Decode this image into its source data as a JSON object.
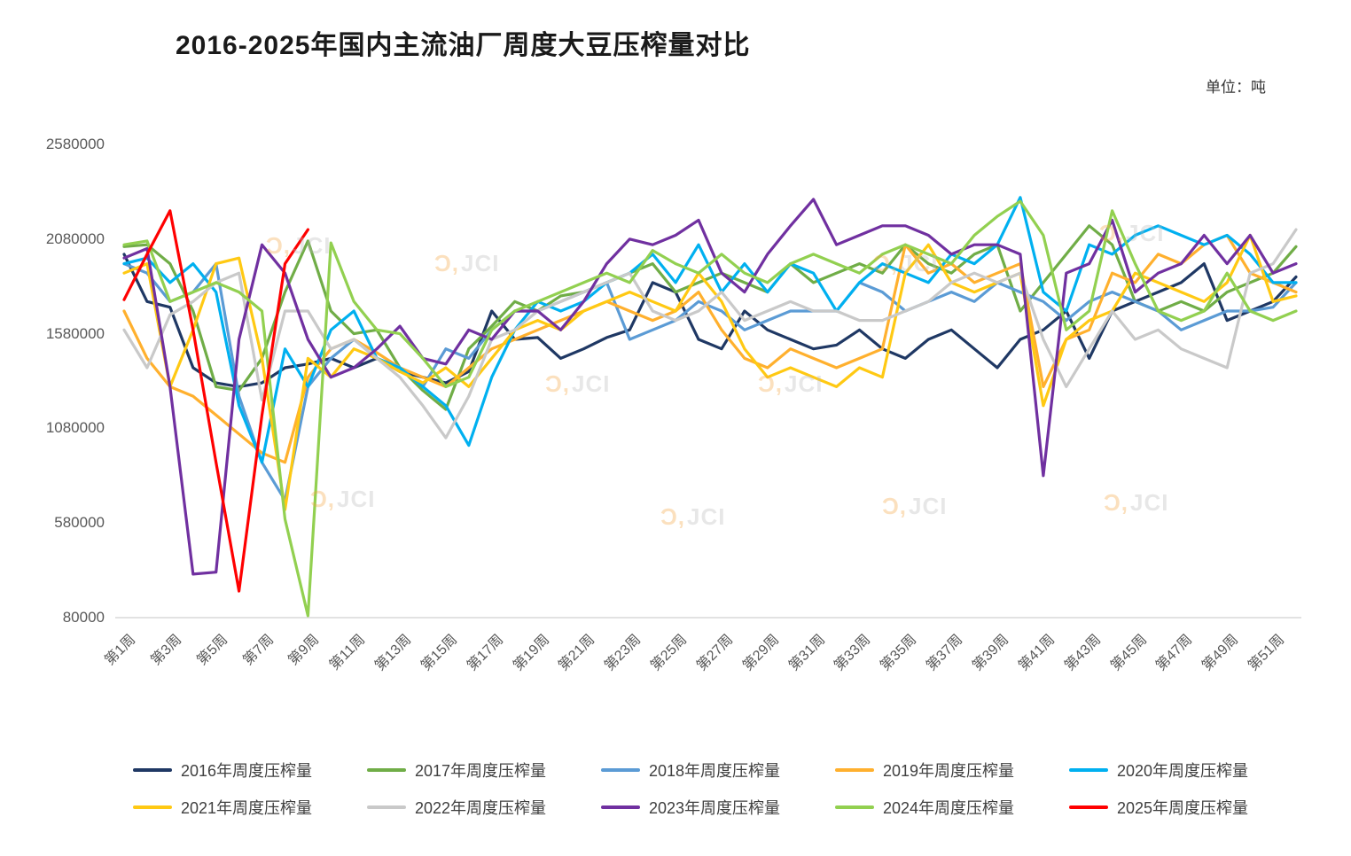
{
  "title": "2016-2025年国内主流油厂周度大豆压榨量对比",
  "unit_label": "单位：吨",
  "watermark": "JCI",
  "chart_data": {
    "type": "line",
    "title": "2016-2025年国内主流油厂周度大豆压榨量对比",
    "ylabel": "吨",
    "weeks": 52,
    "grid": false,
    "legend_position": "bottom",
    "ylim": [
      80000,
      2580000
    ],
    "y_ticks": [
      80000,
      580000,
      1080000,
      1580000,
      2080000,
      2580000
    ],
    "x_tick_labels": [
      "第1周",
      "第3周",
      "第5周",
      "第7周",
      "第9周",
      "第11周",
      "第13周",
      "第15周",
      "第17周",
      "第19周",
      "第21周",
      "第23周",
      "第25周",
      "第27周",
      "第29周",
      "第31周",
      "第33周",
      "第35周",
      "第37周",
      "第39周",
      "第41周",
      "第43周",
      "第45周",
      "第47周",
      "第49周",
      "第51周"
    ],
    "series": [
      {
        "name": "2016年周度压榨量",
        "color": "#1f3864",
        "values": [
          2000000,
          1750000,
          1720000,
          1400000,
          1320000,
          1300000,
          1320000,
          1400000,
          1420000,
          1450000,
          1400000,
          1450000,
          1380000,
          1350000,
          1320000,
          1380000,
          1700000,
          1550000,
          1560000,
          1450000,
          1500000,
          1560000,
          1600000,
          1850000,
          1800000,
          1550000,
          1500000,
          1700000,
          1600000,
          1550000,
          1500000,
          1520000,
          1600000,
          1500000,
          1450000,
          1550000,
          1600000,
          1500000,
          1400000,
          1550000,
          1600000,
          1700000,
          1450000,
          1700000,
          1750000,
          1800000,
          1850000,
          1950000,
          1650000,
          1700000,
          1750000,
          1880000
        ]
      },
      {
        "name": "2017年周度压榨量",
        "color": "#70ad47",
        "values": [
          2040000,
          2050000,
          1950000,
          1700000,
          1300000,
          1280000,
          1450000,
          1800000,
          2070000,
          1700000,
          1580000,
          1600000,
          1400000,
          1280000,
          1180000,
          1500000,
          1620000,
          1750000,
          1700000,
          1780000,
          1800000,
          1850000,
          1900000,
          1950000,
          1800000,
          1850000,
          1900000,
          1850000,
          1800000,
          1950000,
          1850000,
          1900000,
          1950000,
          1900000,
          2050000,
          1950000,
          1900000,
          2000000,
          2050000,
          1700000,
          1850000,
          2000000,
          2150000,
          2050000,
          1750000,
          1700000,
          1750000,
          1700000,
          1800000,
          1850000,
          1900000,
          2040000
        ]
      },
      {
        "name": "2018年周度压榨量",
        "color": "#5b9bd5",
        "values": [
          1950000,
          1900000,
          1750000,
          1800000,
          1950000,
          1250000,
          900000,
          700000,
          1300000,
          1450000,
          1550000,
          1450000,
          1400000,
          1300000,
          1500000,
          1450000,
          1600000,
          1700000,
          1700000,
          1750000,
          1800000,
          1850000,
          1550000,
          1600000,
          1650000,
          1750000,
          1700000,
          1600000,
          1650000,
          1700000,
          1700000,
          1700000,
          1850000,
          1800000,
          1700000,
          1750000,
          1800000,
          1750000,
          1850000,
          1800000,
          1750000,
          1650000,
          1750000,
          1800000,
          1750000,
          1700000,
          1600000,
          1650000,
          1700000,
          1700000,
          1720000,
          1850000
        ]
      },
      {
        "name": "2019年周度压榨量",
        "color": "#ffb02e",
        "values": [
          1700000,
          1450000,
          1300000,
          1250000,
          1150000,
          1050000,
          950000,
          900000,
          1350000,
          1500000,
          1550000,
          1480000,
          1400000,
          1350000,
          1300000,
          1400000,
          1500000,
          1550000,
          1600000,
          1650000,
          1700000,
          1750000,
          1700000,
          1650000,
          1700000,
          1800000,
          1600000,
          1450000,
          1400000,
          1500000,
          1450000,
          1400000,
          1450000,
          1500000,
          2050000,
          1900000,
          1950000,
          1850000,
          1900000,
          1950000,
          1300000,
          1550000,
          1600000,
          1900000,
          1850000,
          2000000,
          1950000,
          2050000,
          2100000,
          1900000,
          1850000,
          1800000
        ]
      },
      {
        "name": "2020年周度压榨量",
        "color": "#00b0f0",
        "values": [
          1950000,
          1980000,
          1850000,
          1950000,
          1800000,
          1200000,
          900000,
          1500000,
          1300000,
          1600000,
          1700000,
          1450000,
          1400000,
          1300000,
          1200000,
          990000,
          1350000,
          1600000,
          1750000,
          1700000,
          1750000,
          1850000,
          1900000,
          2000000,
          1850000,
          2050000,
          1800000,
          1950000,
          1800000,
          1950000,
          1900000,
          1700000,
          1850000,
          1950000,
          1900000,
          1850000,
          2000000,
          1950000,
          2050000,
          2300000,
          1800000,
          1700000,
          2050000,
          2000000,
          2100000,
          2150000,
          2100000,
          2050000,
          2100000,
          2000000,
          1850000,
          1850000
        ]
      },
      {
        "name": "2021年周度压榨量",
        "color": "#ffc913",
        "values": [
          1900000,
          1950000,
          1300000,
          1600000,
          1950000,
          1980000,
          1450000,
          650000,
          1450000,
          1350000,
          1500000,
          1450000,
          1380000,
          1320000,
          1400000,
          1300000,
          1450000,
          1600000,
          1650000,
          1600000,
          1700000,
          1750000,
          1800000,
          1750000,
          1700000,
          1900000,
          1750000,
          1500000,
          1350000,
          1400000,
          1350000,
          1300000,
          1400000,
          1350000,
          1900000,
          2050000,
          1850000,
          1800000,
          1850000,
          1900000,
          1200000,
          1550000,
          1650000,
          1700000,
          1900000,
          1850000,
          1800000,
          1750000,
          1850000,
          2100000,
          1750000,
          1780000
        ]
      },
      {
        "name": "2022年周度压榨量",
        "color": "#c9c9c9",
        "values": [
          1600000,
          1400000,
          1680000,
          1750000,
          1850000,
          1900000,
          1230000,
          1700000,
          1700000,
          1500000,
          1550000,
          1450000,
          1350000,
          1200000,
          1030000,
          1250000,
          1550000,
          1600000,
          1700000,
          1750000,
          1800000,
          1850000,
          1900000,
          1700000,
          1650000,
          1700000,
          1800000,
          1650000,
          1700000,
          1750000,
          1700000,
          1700000,
          1650000,
          1650000,
          1700000,
          1750000,
          1850000,
          1900000,
          1850000,
          1900000,
          1550000,
          1300000,
          1500000,
          1700000,
          1550000,
          1600000,
          1500000,
          1450000,
          1400000,
          1900000,
          1950000,
          2130000
        ]
      },
      {
        "name": "2023年周度压榨量",
        "color": "#7030a0",
        "values": [
          1980000,
          2030000,
          1300000,
          310000,
          320000,
          1550000,
          2050000,
          1900000,
          1550000,
          1350000,
          1400000,
          1500000,
          1620000,
          1450000,
          1420000,
          1600000,
          1550000,
          1700000,
          1700000,
          1600000,
          1750000,
          1950000,
          2080000,
          2050000,
          2100000,
          2180000,
          1900000,
          1800000,
          2000000,
          2150000,
          2290000,
          2050000,
          2100000,
          2150000,
          2150000,
          2100000,
          2000000,
          2050000,
          2050000,
          2000000,
          830000,
          1900000,
          1950000,
          2180000,
          1800000,
          1900000,
          1950000,
          2100000,
          1950000,
          2100000,
          1900000,
          1950000
        ]
      },
      {
        "name": "2024年周度压榨量",
        "color": "#92d050",
        "values": [
          2050000,
          2070000,
          1750000,
          1800000,
          1850000,
          1800000,
          1700000,
          600000,
          90000,
          2060000,
          1750000,
          1600000,
          1580000,
          1450000,
          1300000,
          1350000,
          1600000,
          1700000,
          1750000,
          1800000,
          1850000,
          1900000,
          1850000,
          2020000,
          1950000,
          1900000,
          2000000,
          1900000,
          1850000,
          1950000,
          2000000,
          1950000,
          1900000,
          2000000,
          2050000,
          2000000,
          1950000,
          2100000,
          2200000,
          2280000,
          2100000,
          1600000,
          1700000,
          2230000,
          1950000,
          1700000,
          1650000,
          1700000,
          1900000,
          1700000,
          1650000,
          1700000
        ]
      },
      {
        "name": "2025年周度压榨量",
        "color": "#ff0000",
        "values": [
          1760000,
          2000000,
          2230000,
          1600000,
          900000,
          220000,
          1150000,
          1950000,
          2130000
        ]
      }
    ]
  }
}
